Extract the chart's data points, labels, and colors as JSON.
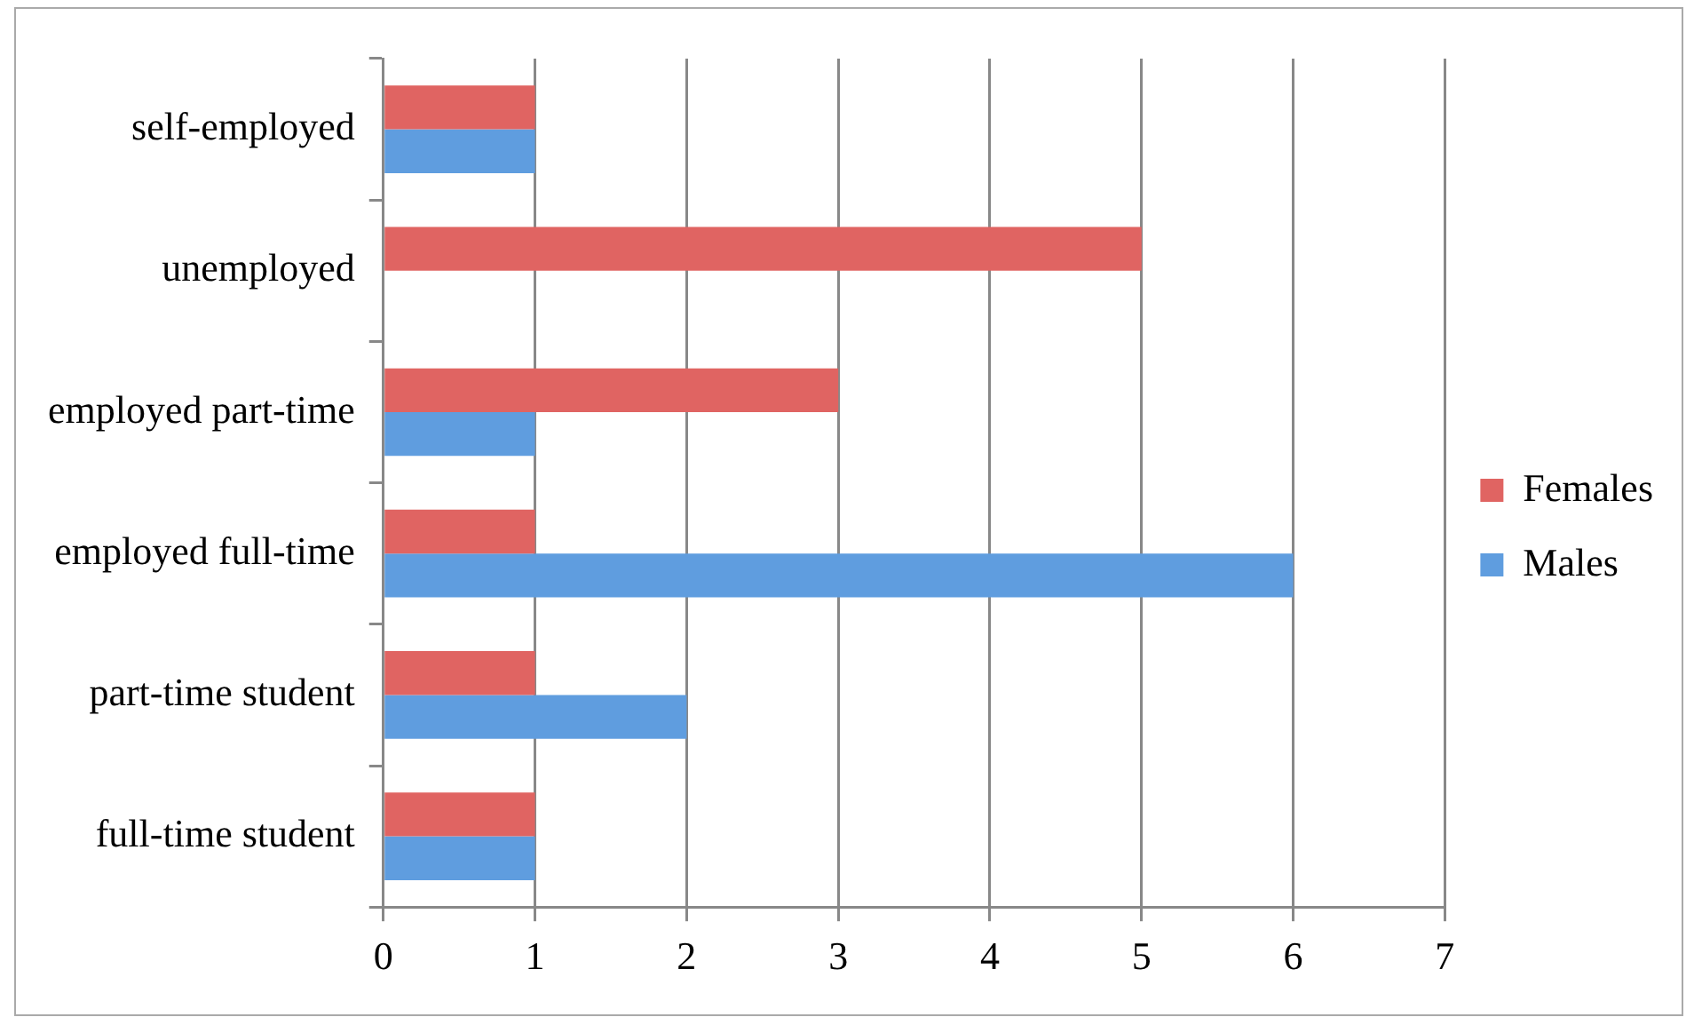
{
  "chart_data": {
    "type": "bar",
    "orientation": "horizontal",
    "categories": [
      "self-employed",
      "unemployed",
      "employed part-time",
      "employed full-time",
      "part-time student",
      "full-time student"
    ],
    "series": [
      {
        "name": "Females",
        "color": "#e06462",
        "values": [
          1,
          5,
          3,
          1,
          1,
          1
        ]
      },
      {
        "name": "Males",
        "color": "#5f9ddf",
        "values": [
          1,
          0,
          1,
          6,
          2,
          1
        ]
      }
    ],
    "xlim": [
      0,
      7
    ],
    "xticks": [
      0,
      1,
      2,
      3,
      4,
      5,
      6,
      7
    ],
    "grid": "x",
    "legend": "right"
  }
}
